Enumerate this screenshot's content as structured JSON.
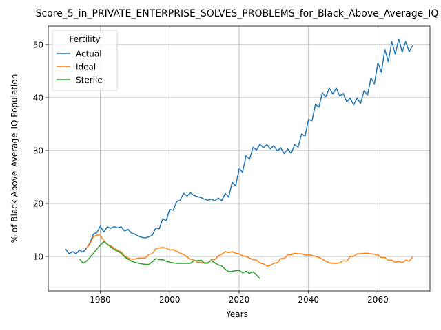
{
  "chart_data": {
    "type": "line",
    "title": "Score_5_in_PRIVATE_ENTERPRISE_SOLVES_PROBLEMS_for_Black_Above_Average_IQ",
    "xlabel": "Years",
    "ylabel": "% of Black Above_Average_IQ Population",
    "xlim": [
      1965,
      2075
    ],
    "ylim": [
      3.5,
      53.5
    ],
    "xticks": [
      1980,
      2000,
      2020,
      2040,
      2060
    ],
    "yticks": [
      10,
      20,
      30,
      40,
      50
    ],
    "grid": true,
    "legend": {
      "title": "Fertility",
      "placement": "top-left"
    },
    "series": [
      {
        "name": "Actual",
        "color": "#1f77b4",
        "x": [
          1970,
          1971,
          1972,
          1973,
          1974,
          1975,
          1976,
          1977,
          1978,
          1979,
          1980,
          1981,
          1982,
          1983,
          1984,
          1985,
          1986,
          1987,
          1988,
          1989,
          1990,
          1991,
          1992,
          1993,
          1994,
          1995,
          1996,
          1997,
          1998,
          1999,
          2000,
          2001,
          2002,
          2003,
          2004,
          2005,
          2006,
          2007,
          2008,
          2009,
          2010,
          2011,
          2012,
          2013,
          2014,
          2015,
          2016,
          2017,
          2018,
          2019,
          2020,
          2021,
          2022,
          2023,
          2024,
          2025,
          2026,
          2027,
          2028,
          2029,
          2030,
          2031,
          2032,
          2033,
          2034,
          2035,
          2036,
          2037,
          2038,
          2039,
          2040,
          2041,
          2042,
          2043,
          2044,
          2045,
          2046,
          2047,
          2048,
          2049,
          2050,
          2051,
          2052,
          2053,
          2054,
          2055,
          2056,
          2057,
          2058,
          2059,
          2060,
          2061,
          2062,
          2063,
          2064,
          2065,
          2066,
          2067,
          2068,
          2069,
          2070
        ],
        "y": [
          11.4,
          10.5,
          10.9,
          10.5,
          11.2,
          10.8,
          11.5,
          12.5,
          14.2,
          14.5,
          15.7,
          14.6,
          15.6,
          15.3,
          15.6,
          15.4,
          15.6,
          14.8,
          15.1,
          14.4,
          14.2,
          13.8,
          13.6,
          13.5,
          13.7,
          14.0,
          15.4,
          15.2,
          17.1,
          16.8,
          18.9,
          18.7,
          20.3,
          20.6,
          21.9,
          21.4,
          22.0,
          21.5,
          21.3,
          21.1,
          20.8,
          20.6,
          20.8,
          20.5,
          21.0,
          20.5,
          21.9,
          21.2,
          24.0,
          23.3,
          26.5,
          25.9,
          29.0,
          28.3,
          30.6,
          30.1,
          31.2,
          30.5,
          31.1,
          30.3,
          30.9,
          29.9,
          30.5,
          29.4,
          30.3,
          29.4,
          31.1,
          30.6,
          33.1,
          32.7,
          35.9,
          35.6,
          38.7,
          38.2,
          40.9,
          40.2,
          41.8,
          40.7,
          41.8,
          40.3,
          40.8,
          39.2,
          39.9,
          38.6,
          39.9,
          38.9,
          41.3,
          40.5,
          43.7,
          42.6,
          46.6,
          44.8,
          49.1,
          46.8,
          50.6,
          48.2,
          51.1,
          48.6,
          50.6,
          48.7,
          49.8
        ]
      },
      {
        "name": "Ideal",
        "color": "#ff7f0e",
        "x": [
          1976,
          1977,
          1978,
          1979,
          1980,
          1981,
          1982,
          1983,
          1984,
          1985,
          1986,
          1987,
          1988,
          1989,
          1990,
          1991,
          1992,
          1993,
          1994,
          1995,
          1996,
          1997,
          1998,
          1999,
          2000,
          2001,
          2002,
          2003,
          2004,
          2005,
          2006,
          2007,
          2008,
          2009,
          2010,
          2011,
          2012,
          2013,
          2014,
          2015,
          2016,
          2017,
          2018,
          2019,
          2020,
          2021,
          2022,
          2023,
          2024,
          2025,
          2026,
          2027,
          2028,
          2029,
          2030,
          2031,
          2032,
          2033,
          2034,
          2035,
          2036,
          2037,
          2038,
          2039,
          2040,
          2041,
          2042,
          2043,
          2044,
          2045,
          2046,
          2047,
          2048,
          2049,
          2050,
          2051,
          2052,
          2053,
          2054,
          2055,
          2056,
          2057,
          2058,
          2059,
          2060,
          2061,
          2062,
          2063,
          2064,
          2065,
          2066,
          2067,
          2068,
          2069,
          2070
        ],
        "y": [
          11.5,
          12.3,
          13.7,
          14.0,
          14.0,
          13.0,
          12.3,
          12.0,
          11.6,
          11.1,
          10.9,
          10.1,
          9.7,
          9.5,
          9.5,
          9.7,
          9.7,
          9.7,
          10.4,
          10.5,
          11.5,
          11.6,
          11.7,
          11.6,
          11.2,
          11.3,
          11.0,
          10.6,
          10.4,
          9.9,
          9.5,
          9.3,
          8.9,
          8.9,
          8.7,
          8.7,
          9.4,
          9.4,
          10.1,
          10.4,
          10.9,
          10.7,
          10.9,
          10.6,
          10.5,
          10.1,
          10.0,
          9.7,
          9.4,
          9.3,
          8.8,
          8.6,
          8.2,
          8.3,
          8.7,
          8.8,
          9.6,
          9.6,
          10.3,
          10.3,
          10.6,
          10.5,
          10.5,
          10.3,
          10.3,
          10.2,
          10.0,
          9.8,
          9.5,
          9.1,
          8.8,
          8.7,
          8.7,
          8.8,
          9.2,
          9.1,
          10.0,
          10.0,
          10.5,
          10.5,
          10.6,
          10.6,
          10.5,
          10.4,
          10.3,
          9.8,
          9.8,
          9.3,
          9.3,
          8.9,
          9.1,
          8.8,
          9.3,
          9.1,
          9.9
        ]
      },
      {
        "name": "Sterile",
        "color": "#2ca02c",
        "x": [
          1974,
          1975,
          1976,
          1977,
          1978,
          1979,
          1980,
          1981,
          1982,
          1983,
          1984,
          1985,
          1986,
          1987,
          1988,
          1989,
          1990,
          1991,
          1992,
          1993,
          1994,
          1995,
          1996,
          1997,
          1998,
          1999,
          2000,
          2001,
          2002,
          2003,
          2004,
          2005,
          2006,
          2007,
          2008,
          2009,
          2010,
          2011,
          2012,
          2013,
          2014,
          2015,
          2016,
          2017,
          2018,
          2019,
          2020,
          2021,
          2022,
          2023,
          2024,
          2025,
          2026
        ],
        "y": [
          9.6,
          8.7,
          9.1,
          9.8,
          10.6,
          11.4,
          12.1,
          12.8,
          12.3,
          11.8,
          11.3,
          11.0,
          10.6,
          9.9,
          9.5,
          9.1,
          8.9,
          8.7,
          8.6,
          8.5,
          8.5,
          9.0,
          9.6,
          9.4,
          9.4,
          9.1,
          8.9,
          8.8,
          8.7,
          8.7,
          8.7,
          8.7,
          8.7,
          9.2,
          9.2,
          9.3,
          8.8,
          8.8,
          9.2,
          8.8,
          8.4,
          8.2,
          7.6,
          7.1,
          7.2,
          7.3,
          7.4,
          6.9,
          7.2,
          6.8,
          7.1,
          6.5,
          5.8
        ]
      }
    ]
  }
}
